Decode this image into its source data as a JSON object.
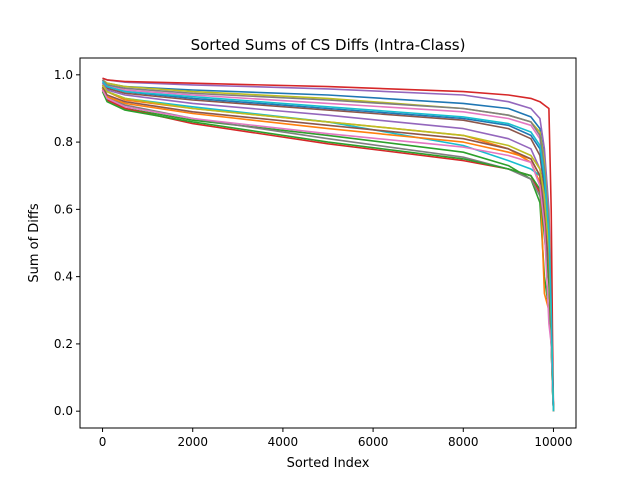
{
  "chart_data": {
    "type": "line",
    "title": "Sorted Sums of CS Diffs (Intra-Class)",
    "xlabel": "Sorted Index",
    "ylabel": "Sum of Diffs",
    "xlim": [
      -500,
      10500
    ],
    "ylim": [
      -0.05,
      1.05
    ],
    "xticks": [
      0,
      2000,
      4000,
      6000,
      8000,
      10000
    ],
    "xtick_labels": [
      "0",
      "2000",
      "4000",
      "6000",
      "8000",
      "10000"
    ],
    "yticks": [
      0.0,
      0.2,
      0.4,
      0.6,
      0.8,
      1.0
    ],
    "ytick_labels": [
      "0.0",
      "0.2",
      "0.4",
      "0.6",
      "0.8",
      "1.0"
    ],
    "grid": false,
    "legend": "none",
    "colors": [
      "#1f77b4",
      "#ff7f0e",
      "#2ca02c",
      "#d62728",
      "#9467bd",
      "#8c564b",
      "#e377c2",
      "#7f7f7f",
      "#bcbd22",
      "#17becf"
    ],
    "series": [
      {
        "x": [
          0,
          100,
          500,
          2000,
          5000,
          8000,
          9000,
          9500,
          9700,
          9800,
          9900,
          9950,
          9980,
          10000
        ],
        "y": [
          0.985,
          0.975,
          0.965,
          0.955,
          0.94,
          0.915,
          0.9,
          0.875,
          0.84,
          0.75,
          0.55,
          0.3,
          0.1,
          0.0
        ]
      },
      {
        "x": [
          0,
          100,
          500,
          2000,
          5000,
          8000,
          9000,
          9500,
          9700,
          9800,
          9900,
          9950,
          9980,
          10000
        ],
        "y": [
          0.97,
          0.95,
          0.925,
          0.9,
          0.86,
          0.82,
          0.78,
          0.74,
          0.68,
          0.6,
          0.45,
          0.25,
          0.08,
          0.0
        ]
      },
      {
        "x": [
          0,
          100,
          500,
          2000,
          5000,
          8000,
          9000,
          9500,
          9700,
          9800,
          9900,
          9950,
          9980,
          10000
        ],
        "y": [
          0.96,
          0.93,
          0.9,
          0.865,
          0.82,
          0.77,
          0.73,
          0.69,
          0.62,
          0.4,
          0.3,
          0.2,
          0.06,
          0.0
        ]
      },
      {
        "x": [
          0,
          100,
          500,
          2000,
          5000,
          8000,
          9000,
          9500,
          9700,
          9800,
          9900,
          9950,
          9980,
          10000
        ],
        "y": [
          0.955,
          0.925,
          0.9,
          0.855,
          0.795,
          0.745,
          0.72,
          0.7,
          0.65,
          0.55,
          0.42,
          0.22,
          0.07,
          0.0
        ]
      },
      {
        "x": [
          0,
          100,
          500,
          2000,
          5000,
          8000,
          9000,
          9500,
          9700,
          9800,
          9900,
          9950,
          9980,
          10000
        ],
        "y": [
          0.99,
          0.985,
          0.978,
          0.97,
          0.958,
          0.94,
          0.92,
          0.9,
          0.87,
          0.78,
          0.6,
          0.35,
          0.12,
          0.0
        ]
      },
      {
        "x": [
          0,
          100,
          500,
          2000,
          5000,
          8000,
          9000,
          9500,
          9700,
          9800,
          9900,
          9950,
          9980,
          10000
        ],
        "y": [
          0.975,
          0.96,
          0.945,
          0.925,
          0.895,
          0.865,
          0.84,
          0.81,
          0.76,
          0.66,
          0.5,
          0.28,
          0.09,
          0.0
        ]
      },
      {
        "x": [
          0,
          100,
          500,
          2000,
          5000,
          8000,
          9000,
          9500,
          9700,
          9800,
          9900,
          9950,
          9980,
          10000
        ],
        "y": [
          0.98,
          0.97,
          0.955,
          0.94,
          0.915,
          0.89,
          0.87,
          0.85,
          0.81,
          0.7,
          0.52,
          0.3,
          0.1,
          0.0
        ]
      },
      {
        "x": [
          0,
          100,
          500,
          2000,
          5000,
          8000,
          9000,
          9500,
          9700,
          9800,
          9900,
          9950,
          9980,
          10000
        ],
        "y": [
          0.96,
          0.935,
          0.91,
          0.87,
          0.81,
          0.755,
          0.72,
          0.69,
          0.64,
          0.55,
          0.4,
          0.22,
          0.07,
          0.0
        ]
      },
      {
        "x": [
          0,
          100,
          500,
          2000,
          5000,
          8000,
          9000,
          9500,
          9700,
          9800,
          9900,
          9950,
          9980,
          10000
        ],
        "y": [
          0.985,
          0.975,
          0.965,
          0.95,
          0.93,
          0.9,
          0.88,
          0.86,
          0.83,
          0.74,
          0.56,
          0.32,
          0.1,
          0.0
        ]
      },
      {
        "x": [
          0,
          100,
          500,
          2000,
          5000,
          8000,
          9000,
          9500,
          9700,
          9800,
          9900,
          9950,
          9980,
          10000
        ],
        "y": [
          0.97,
          0.95,
          0.93,
          0.905,
          0.86,
          0.79,
          0.745,
          0.72,
          0.7,
          0.62,
          0.46,
          0.26,
          0.08,
          0.0
        ]
      },
      {
        "x": [
          0,
          100,
          500,
          2000,
          5000,
          8000,
          9000,
          9500,
          9700,
          9800,
          9900,
          9950,
          9980,
          10000
        ],
        "y": [
          0.98,
          0.965,
          0.95,
          0.93,
          0.9,
          0.87,
          0.85,
          0.82,
          0.78,
          0.68,
          0.5,
          0.28,
          0.09,
          0.0
        ]
      },
      {
        "x": [
          0,
          100,
          500,
          2000,
          5000,
          8000,
          9000,
          9500,
          9700,
          9800,
          9900,
          9950,
          9980,
          10000
        ],
        "y": [
          0.96,
          0.935,
          0.915,
          0.885,
          0.84,
          0.8,
          0.77,
          0.75,
          0.7,
          0.35,
          0.3,
          0.22,
          0.07,
          0.0
        ]
      },
      {
        "x": [
          0,
          100,
          500,
          2000,
          5000,
          8000,
          9000,
          9500,
          9700,
          9800,
          9900,
          9950,
          9980,
          10000
        ],
        "y": [
          0.95,
          0.92,
          0.895,
          0.86,
          0.8,
          0.75,
          0.72,
          0.7,
          0.66,
          0.52,
          0.38,
          0.2,
          0.06,
          0.0
        ]
      },
      {
        "x": [
          0,
          100,
          500,
          2000,
          5000,
          8000,
          9000,
          9500,
          9700,
          9800,
          9900,
          9950,
          9980,
          10000
        ],
        "y": [
          0.99,
          0.985,
          0.98,
          0.975,
          0.965,
          0.95,
          0.94,
          0.93,
          0.92,
          0.91,
          0.9,
          0.6,
          0.2,
          0.0
        ]
      },
      {
        "x": [
          0,
          100,
          500,
          2000,
          5000,
          8000,
          9000,
          9500,
          9700,
          9800,
          9900,
          9950,
          9980,
          10000
        ],
        "y": [
          0.975,
          0.955,
          0.94,
          0.915,
          0.88,
          0.84,
          0.81,
          0.78,
          0.72,
          0.62,
          0.47,
          0.26,
          0.08,
          0.0
        ]
      },
      {
        "x": [
          0,
          100,
          500,
          2000,
          5000,
          8000,
          9000,
          9500,
          9700,
          9800,
          9900,
          9950,
          9980,
          10000
        ],
        "y": [
          0.965,
          0.94,
          0.92,
          0.89,
          0.85,
          0.81,
          0.78,
          0.75,
          0.7,
          0.58,
          0.43,
          0.24,
          0.07,
          0.0
        ]
      },
      {
        "x": [
          0,
          100,
          500,
          2000,
          5000,
          8000,
          9000,
          9500,
          9700,
          9800,
          9900,
          9950,
          9980,
          10000
        ],
        "y": [
          0.955,
          0.93,
          0.905,
          0.87,
          0.825,
          0.785,
          0.76,
          0.74,
          0.67,
          0.55,
          0.26,
          0.2,
          0.06,
          0.0
        ]
      },
      {
        "x": [
          0,
          100,
          500,
          2000,
          5000,
          8000,
          9000,
          9500,
          9700,
          9800,
          9900,
          9950,
          9980,
          10000
        ],
        "y": [
          0.985,
          0.97,
          0.96,
          0.945,
          0.925,
          0.9,
          0.88,
          0.86,
          0.82,
          0.72,
          0.55,
          0.31,
          0.1,
          0.0
        ]
      },
      {
        "x": [
          0,
          100,
          500,
          2000,
          5000,
          8000,
          9000,
          9500,
          9700,
          9800,
          9900,
          9950,
          9980,
          10000
        ],
        "y": [
          0.97,
          0.95,
          0.93,
          0.9,
          0.86,
          0.82,
          0.79,
          0.76,
          0.72,
          0.64,
          0.48,
          0.27,
          0.09,
          0.0
        ]
      },
      {
        "x": [
          0,
          100,
          500,
          2000,
          5000,
          8000,
          9000,
          9500,
          9700,
          9800,
          9900,
          9950,
          9980,
          10000
        ],
        "y": [
          0.98,
          0.965,
          0.95,
          0.935,
          0.905,
          0.875,
          0.855,
          0.83,
          0.79,
          0.7,
          0.53,
          0.3,
          0.1,
          0.0
        ]
      }
    ]
  }
}
